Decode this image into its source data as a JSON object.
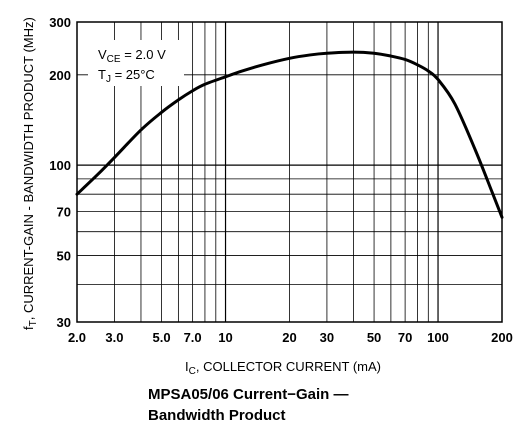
{
  "chart_data": {
    "type": "line",
    "title": "MPSA05/06 Current−Gain —",
    "subtitle": "Bandwidth Product",
    "xlabel": "I C, COLLECTOR CURRENT (mA)",
    "xlabel_main": "I",
    "xlabel_sub": "C",
    "xlabel_rest": ", COLLECTOR CURRENT (mA)",
    "ylabel_main": "f",
    "ylabel_sub": "T",
    "ylabel_rest": ", CURRENT-GAIN - BANDWIDTH PRODUCT (MHz)",
    "x_scale": "log",
    "y_scale": "log",
    "xlim": [
      2,
      200
    ],
    "ylim": [
      30,
      300
    ],
    "x_ticks": [
      2,
      3,
      5,
      7,
      10,
      20,
      30,
      50,
      70,
      100,
      200
    ],
    "x_tick_labels": [
      "2.0",
      "3.0",
      "5.0",
      "7.0",
      "10",
      "20",
      "30",
      "50",
      "70",
      "100",
      "200"
    ],
    "y_ticks": [
      30,
      50,
      70,
      100,
      200,
      300
    ],
    "y_tick_labels": [
      "30",
      "50",
      "70",
      "100",
      "200",
      "300"
    ],
    "grid": true,
    "annotations": {
      "vce_main": "V",
      "vce_sub": "CE",
      "vce_rest": " = 2.0 V",
      "tj_main": "T",
      "tj_sub": "J",
      "tj_rest": " = 25°C"
    },
    "series": [
      {
        "x": [
          2,
          2.5,
          3,
          4,
          5,
          6,
          7,
          8,
          10,
          12,
          15,
          20,
          25,
          30,
          40,
          50,
          60,
          70,
          80,
          90,
          100,
          120,
          150,
          180,
          200
        ],
        "y": [
          80,
          93,
          106,
          131,
          150,
          165,
          177,
          186,
          197,
          206,
          216,
          227,
          233,
          236,
          238,
          236,
          231,
          225,
          216,
          206,
          193,
          160,
          112,
          81,
          67
        ]
      }
    ]
  }
}
